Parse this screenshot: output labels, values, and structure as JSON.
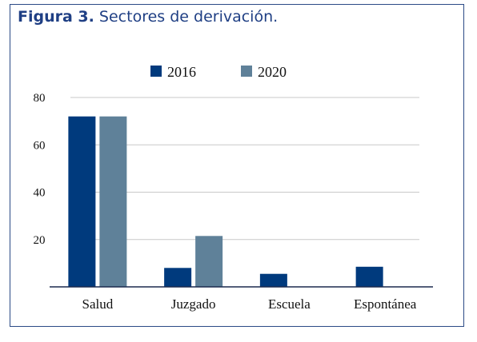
{
  "figure": {
    "label": "Figura 3.",
    "caption": "Sectores de derivación."
  },
  "colors": {
    "frame": "#2b4a86",
    "title": "#1f3f84",
    "series_2016": "#003a7d",
    "series_2020": "#5f8199",
    "grid": "#c8c8c8",
    "axis": "#1b2a4e"
  },
  "chart_data": {
    "type": "bar",
    "title": "",
    "xlabel": "",
    "ylabel": "",
    "categories": [
      "Salud",
      "Juzgado",
      "Escuela",
      "Espontánea"
    ],
    "series": [
      {
        "name": "2016",
        "values": [
          72,
          8,
          5.5,
          8.5
        ]
      },
      {
        "name": "2020",
        "values": [
          72,
          21.5,
          0,
          0
        ]
      }
    ],
    "ylim": [
      0,
      80
    ],
    "yticks": [
      20,
      40,
      60,
      80
    ],
    "grid": true,
    "legend": "top-center"
  }
}
